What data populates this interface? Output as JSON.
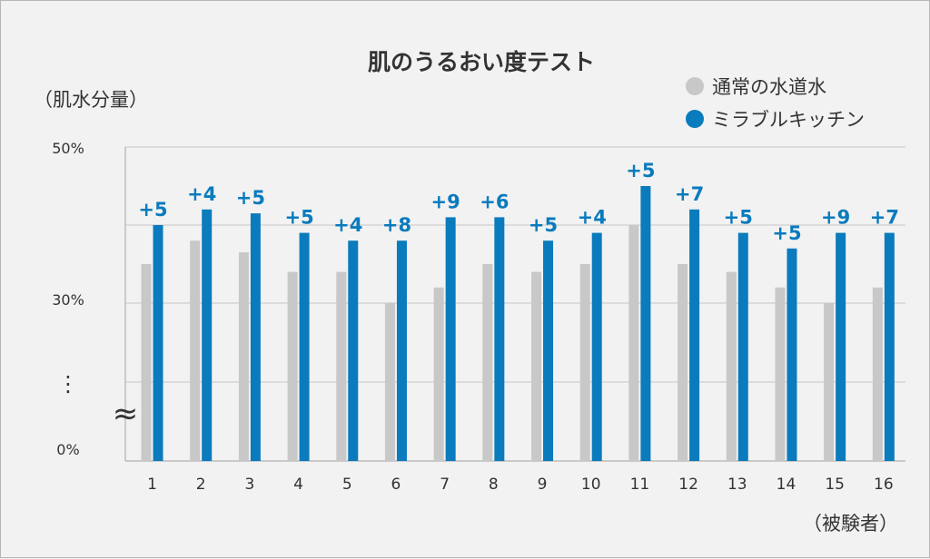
{
  "chart_data": {
    "type": "bar",
    "title": "肌のうるおい度テスト",
    "ylabel": "（肌水分量）",
    "xlabel": "（被験者）",
    "y_tick_labels": [
      "50%",
      "30%",
      "0%"
    ],
    "axis_break_dots": "⋮",
    "axis_break_mark": "≈",
    "categories": [
      "1",
      "2",
      "3",
      "4",
      "5",
      "6",
      "7",
      "8",
      "9",
      "10",
      "11",
      "12",
      "13",
      "14",
      "15",
      "16"
    ],
    "series": [
      {
        "name": "通常の水道水",
        "color": "#c8c8c8",
        "values": [
          35,
          38,
          36.5,
          34,
          34,
          30,
          32,
          35,
          34,
          35,
          40,
          35,
          34,
          32,
          30,
          32
        ]
      },
      {
        "name": "ミラブルキッチン",
        "color": "#0a7bbd",
        "values": [
          40,
          42,
          41.5,
          39,
          38,
          38,
          41,
          41,
          38,
          39,
          45,
          42,
          39,
          37,
          39,
          39
        ]
      }
    ],
    "differences": [
      "+5",
      "+4",
      "+5",
      "+5",
      "+4",
      "+8",
      "+9",
      "+6",
      "+5",
      "+4",
      "+5",
      "+7",
      "+5",
      "+5",
      "+9",
      "+7"
    ],
    "difference_color": "#0a7bbd",
    "grid": true,
    "legend_position": "top-right"
  }
}
